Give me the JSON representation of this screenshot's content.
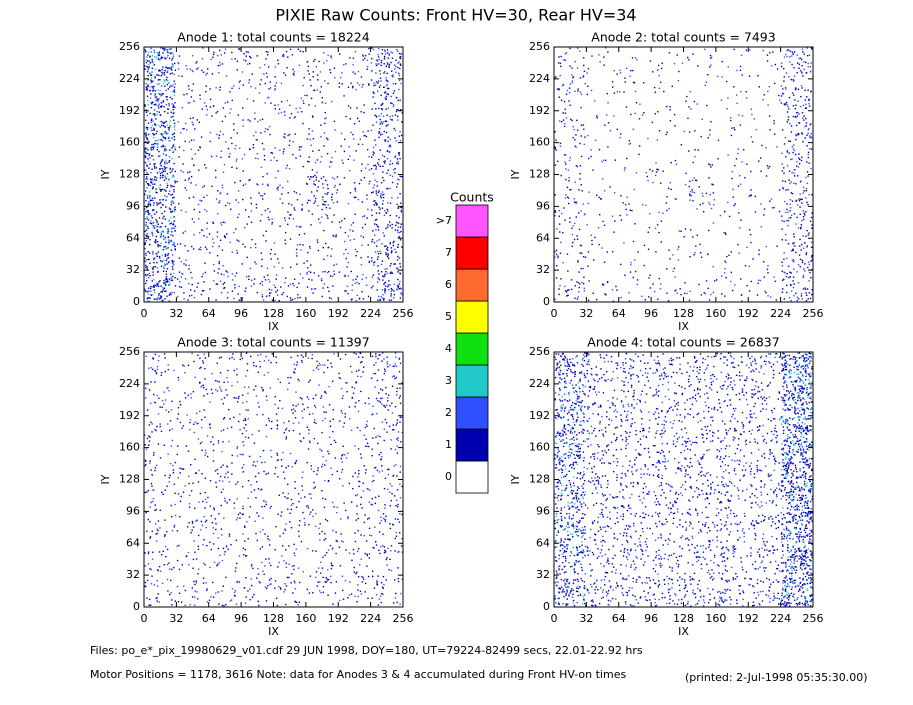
{
  "title": "PIXIE Raw Counts:  Front HV=30, Rear HV=34",
  "chart_data": [
    {
      "type": "heatmap",
      "title": "Anode 1: total counts = 18224",
      "x_label": "IX",
      "y_label": "IY",
      "xlim": [
        0,
        256
      ],
      "ylim": [
        0,
        256
      ],
      "xticks": [
        0,
        32,
        64,
        96,
        128,
        160,
        192,
        224,
        256
      ],
      "yticks": [
        0,
        32,
        64,
        96,
        128,
        160,
        192,
        224,
        256
      ],
      "x_bins": [
        0,
        32,
        64,
        96,
        128,
        160,
        192,
        224,
        256
      ],
      "y_bins": [
        0,
        32,
        64,
        96,
        128,
        160,
        192,
        224,
        256
      ],
      "counts": [
        [
          900,
          250,
          250,
          250,
          250,
          250,
          250,
          600
        ],
        [
          900,
          150,
          150,
          150,
          150,
          150,
          150,
          500
        ],
        [
          900,
          150,
          150,
          150,
          150,
          150,
          150,
          450
        ],
        [
          900,
          150,
          150,
          150,
          150,
          450,
          150,
          400
        ],
        [
          900,
          150,
          150,
          150,
          150,
          150,
          150,
          400
        ],
        [
          900,
          150,
          150,
          150,
          150,
          150,
          150,
          450
        ],
        [
          900,
          150,
          150,
          150,
          150,
          150,
          150,
          500
        ],
        [
          950,
          180,
          180,
          180,
          180,
          180,
          180,
          600
        ]
      ]
    },
    {
      "type": "heatmap",
      "title": "Anode 2: total counts = 7493",
      "x_label": "IX",
      "y_label": "IY",
      "xlim": [
        0,
        256
      ],
      "ylim": [
        0,
        256
      ],
      "xticks": [
        0,
        32,
        64,
        96,
        128,
        160,
        192,
        224,
        256
      ],
      "yticks": [
        0,
        32,
        64,
        96,
        128,
        160,
        192,
        224,
        256
      ],
      "x_bins": [
        0,
        32,
        64,
        96,
        128,
        160,
        192,
        224,
        256
      ],
      "y_bins": [
        0,
        32,
        64,
        96,
        128,
        160,
        192,
        224,
        256
      ],
      "counts": [
        [
          250,
          120,
          120,
          120,
          120,
          120,
          120,
          450
        ],
        [
          200,
          80,
          80,
          80,
          80,
          80,
          80,
          400
        ],
        [
          200,
          80,
          80,
          80,
          80,
          80,
          80,
          350
        ],
        [
          200,
          80,
          80,
          80,
          250,
          80,
          80,
          350
        ],
        [
          200,
          80,
          80,
          80,
          80,
          80,
          80,
          350
        ],
        [
          200,
          80,
          80,
          80,
          80,
          80,
          80,
          400
        ],
        [
          200,
          80,
          80,
          80,
          80,
          80,
          80,
          400
        ],
        [
          220,
          90,
          90,
          90,
          90,
          90,
          90,
          450
        ]
      ]
    },
    {
      "type": "heatmap",
      "title": "Anode 3: total counts = 11397",
      "x_label": "IX",
      "y_label": "IY",
      "xlim": [
        0,
        256
      ],
      "ylim": [
        0,
        256
      ],
      "xticks": [
        0,
        32,
        64,
        96,
        128,
        160,
        192,
        224,
        256
      ],
      "yticks": [
        0,
        32,
        64,
        96,
        128,
        160,
        192,
        224,
        256
      ],
      "x_bins": [
        0,
        32,
        64,
        96,
        128,
        160,
        192,
        224,
        256
      ],
      "y_bins": [
        0,
        32,
        64,
        96,
        128,
        160,
        192,
        224,
        256
      ],
      "counts": [
        [
          220,
          200,
          200,
          200,
          200,
          200,
          200,
          250
        ],
        [
          200,
          170,
          170,
          170,
          170,
          170,
          170,
          220
        ],
        [
          200,
          170,
          170,
          170,
          170,
          170,
          170,
          220
        ],
        [
          200,
          170,
          170,
          170,
          170,
          170,
          170,
          220
        ],
        [
          200,
          170,
          170,
          170,
          170,
          170,
          170,
          220
        ],
        [
          200,
          170,
          170,
          170,
          170,
          170,
          170,
          250
        ],
        [
          200,
          170,
          170,
          170,
          170,
          170,
          170,
          300
        ],
        [
          200,
          170,
          170,
          170,
          170,
          170,
          200,
          320
        ]
      ]
    },
    {
      "type": "heatmap",
      "title": "Anode 4: total counts = 26837",
      "x_label": "IX",
      "y_label": "IY",
      "xlim": [
        0,
        256
      ],
      "ylim": [
        0,
        256
      ],
      "xticks": [
        0,
        32,
        64,
        96,
        128,
        160,
        192,
        224,
        256
      ],
      "yticks": [
        0,
        32,
        64,
        96,
        128,
        160,
        192,
        224,
        256
      ],
      "x_bins": [
        0,
        32,
        64,
        96,
        128,
        160,
        192,
        224,
        256
      ],
      "y_bins": [
        0,
        32,
        64,
        96,
        128,
        160,
        192,
        224,
        256
      ],
      "counts": [
        [
          750,
          380,
          380,
          380,
          380,
          380,
          380,
          1150
        ],
        [
          700,
          320,
          320,
          320,
          320,
          320,
          320,
          1100
        ],
        [
          700,
          320,
          320,
          320,
          320,
          320,
          320,
          1100
        ],
        [
          700,
          320,
          320,
          320,
          320,
          320,
          320,
          1100
        ],
        [
          700,
          320,
          320,
          320,
          320,
          320,
          320,
          1100
        ],
        [
          700,
          320,
          320,
          320,
          320,
          320,
          320,
          1100
        ],
        [
          700,
          320,
          320,
          320,
          320,
          320,
          320,
          1100
        ],
        [
          750,
          340,
          340,
          340,
          340,
          340,
          340,
          1150
        ]
      ]
    }
  ],
  "colorbar": {
    "title": "Counts",
    "labels": [
      "0",
      "1",
      "2",
      "3",
      "4",
      "5",
      "6",
      "7",
      ">7"
    ],
    "colors": [
      "#ffffff",
      "#0000b0",
      "#3050ff",
      "#20c8c8",
      "#10e010",
      "#ffff00",
      "#ff6a30",
      "#ff0000",
      "#ff55ff"
    ]
  },
  "footer": {
    "files": "Files: po_e*_pix_19980629_v01.cdf    29 JUN 1998, DOY=180, UT=79224-82499 secs, 22.01-22.92 hrs",
    "motor": "Motor Positions = 1178, 3616    Note: data for Anodes 3 & 4 accumulated during Front HV-on times",
    "printed": "(printed:  2-Jul-1998 05:35:30.00)"
  }
}
